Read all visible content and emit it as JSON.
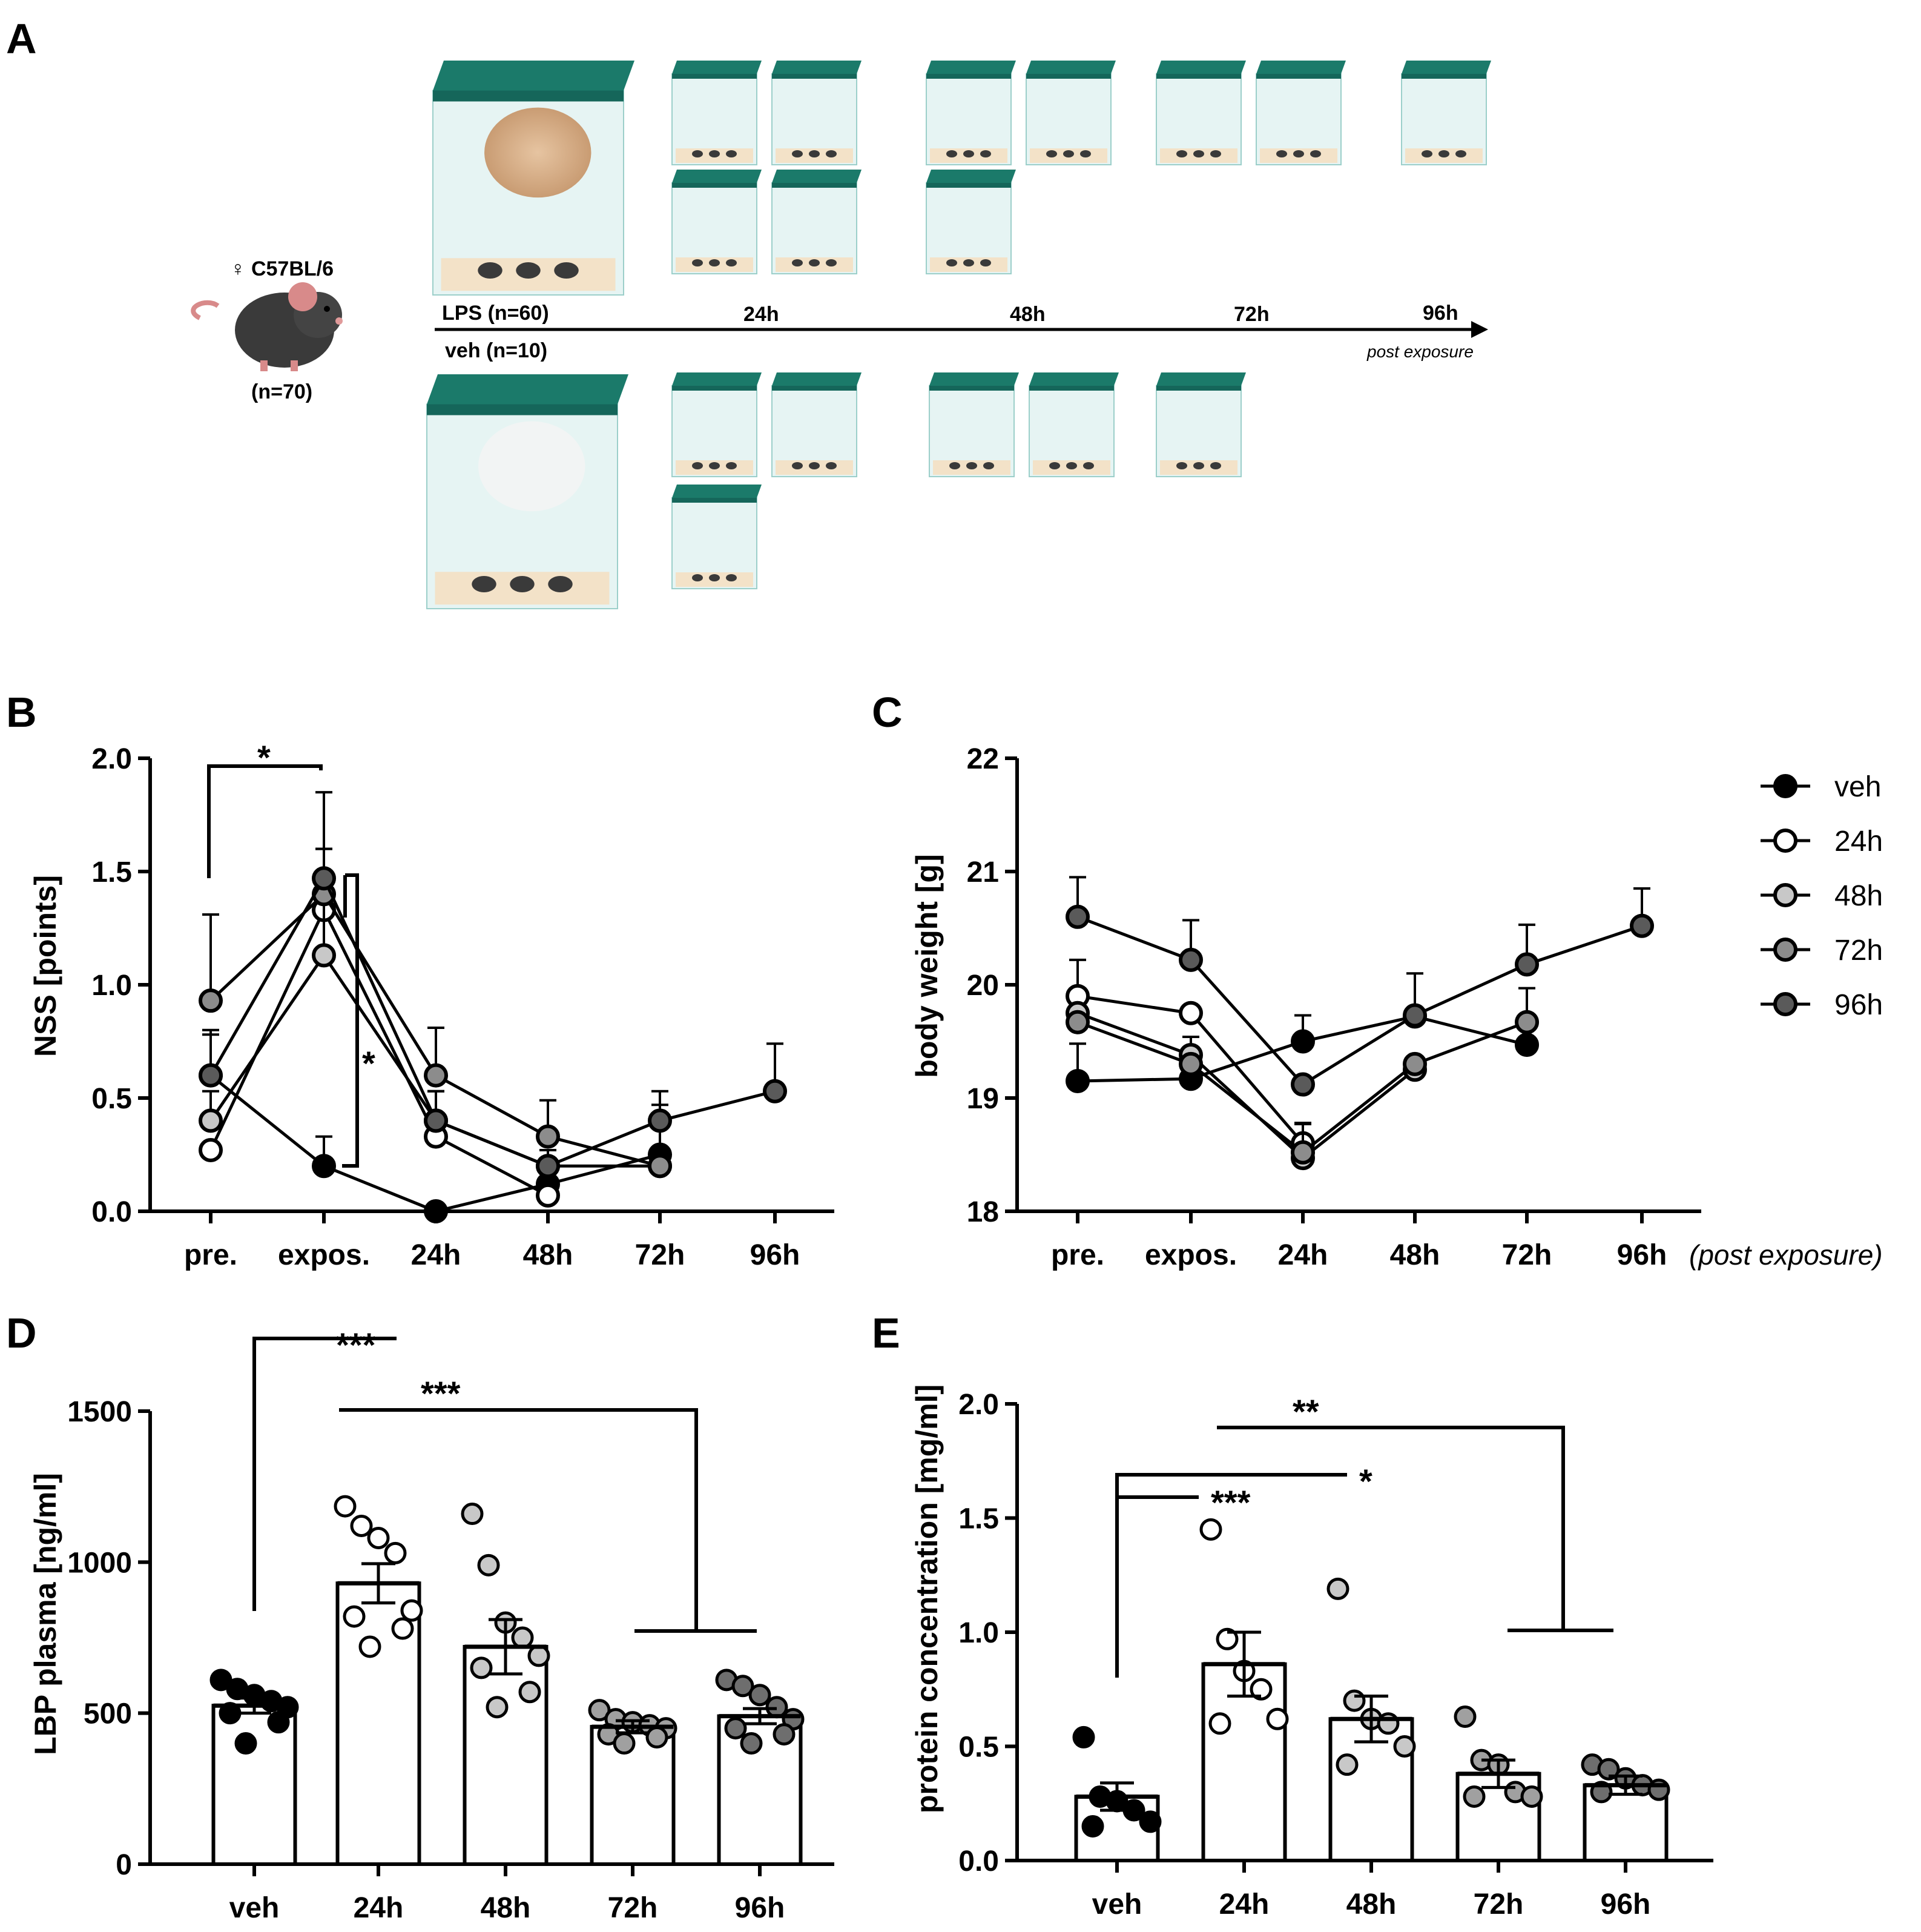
{
  "panels": {
    "A": "A",
    "B": "B",
    "C": "C",
    "D": "D",
    "E": "E"
  },
  "schema": {
    "mouse_label": "♀ C57BL/6",
    "mouse_n": "(n=70)",
    "lps_label": "LPS (n=60)",
    "veh_label": "veh (n=10)",
    "timeline_labels": [
      "24h",
      "48h",
      "72h",
      "96h"
    ],
    "post_exposure": "post exposure",
    "cage_color": "#1b7a6a",
    "lps_cloud_color": "#d8b48f"
  },
  "legend": {
    "items": [
      {
        "label": "veh",
        "fill": "#000000"
      },
      {
        "label": "24h",
        "fill": "#ffffff"
      },
      {
        "label": "48h",
        "fill": "#c8c8c8"
      },
      {
        "label": "72h",
        "fill": "#8c8c8c"
      },
      {
        "label": "96h",
        "fill": "#5a5a5a"
      }
    ]
  },
  "chart_data": [
    {
      "panel": "B",
      "type": "line",
      "ylabel": "NSS [points]",
      "categories": [
        "pre.",
        "expos.",
        "24h",
        "48h",
        "72h",
        "96h"
      ],
      "ylim": [
        0,
        2.0
      ],
      "yticks": [
        "0.0",
        "0.5",
        "1.0",
        "1.5",
        "2.0"
      ],
      "series": [
        {
          "name": "veh",
          "values": [
            0.6,
            0.2,
            0.0,
            0.12,
            0.25,
            null
          ],
          "err": [
            0.18,
            0.13,
            0,
            0,
            0,
            null
          ]
        },
        {
          "name": "24h",
          "values": [
            0.27,
            1.33,
            0.33,
            0.07,
            null,
            null
          ],
          "err": [
            0.0,
            0.27,
            0.0,
            0.0,
            null,
            null
          ]
        },
        {
          "name": "48h",
          "values": [
            0.4,
            1.13,
            0.4,
            0.2,
            0.2,
            null
          ],
          "err": [
            0.13,
            0.27,
            0.13,
            0.0,
            0.27,
            null
          ]
        },
        {
          "name": "72h",
          "values": [
            0.93,
            1.4,
            0.6,
            0.33,
            0.2,
            null
          ],
          "err": [
            0.38,
            0.45,
            0.21,
            0.16,
            0.07,
            null
          ]
        },
        {
          "name": "96h",
          "values": [
            0.6,
            1.47,
            0.4,
            0.2,
            0.4,
            0.53
          ],
          "err": [
            0.2,
            0.13,
            0.13,
            0.07,
            0.13,
            0.21
          ]
        }
      ],
      "annotations": [
        {
          "text": "*",
          "from": "pre.",
          "to": "expos."
        },
        {
          "text": "*",
          "at": "expos."
        }
      ]
    },
    {
      "panel": "C",
      "type": "line",
      "ylabel": "body weight [g]",
      "categories": [
        "pre.",
        "expos.",
        "24h",
        "48h",
        "72h",
        "96h"
      ],
      "xnote": "(post exposure)",
      "ylim": [
        18,
        22
      ],
      "yticks": [
        "18",
        "19",
        "20",
        "21",
        "22"
      ],
      "series": [
        {
          "name": "veh",
          "values": [
            19.15,
            19.17,
            19.5,
            19.72,
            19.47,
            null
          ],
          "err": [
            0.33,
            0.0,
            0.23,
            0.0,
            0.0,
            null
          ]
        },
        {
          "name": "24h",
          "values": [
            19.9,
            19.75,
            18.6,
            null,
            null,
            null
          ],
          "err": [
            0.32,
            0.0,
            0.18,
            null,
            null,
            null
          ]
        },
        {
          "name": "48h",
          "values": [
            19.75,
            19.38,
            18.47,
            19.25,
            null,
            null
          ],
          "err": [
            0.0,
            0.16,
            0.0,
            0.0,
            null,
            null
          ]
        },
        {
          "name": "72h",
          "values": [
            19.67,
            19.3,
            18.52,
            19.3,
            19.67,
            null
          ],
          "err": [
            0.0,
            0.0,
            0.25,
            0.0,
            0.3,
            null
          ]
        },
        {
          "name": "96h",
          "values": [
            20.6,
            20.22,
            19.12,
            19.73,
            20.18,
            20.52
          ],
          "err": [
            0.35,
            0.35,
            0.0,
            0.37,
            0.35,
            0.33
          ]
        }
      ]
    },
    {
      "panel": "D",
      "type": "bar",
      "ylabel": "LBP plasma [ng/ml]",
      "categories": [
        "veh",
        "24h",
        "48h",
        "72h",
        "96h"
      ],
      "ylim": [
        0,
        1500
      ],
      "yticks": [
        "0",
        "500",
        "1000",
        "1500"
      ],
      "values": [
        525,
        930,
        720,
        455,
        490
      ],
      "err": [
        25,
        65,
        90,
        20,
        25
      ],
      "points_fill": [
        "#000000",
        "#ffffff",
        "#c8c8c8",
        "#a0a0a0",
        "#6e6e6e"
      ],
      "points": [
        [
          610,
          580,
          560,
          540,
          520,
          500,
          470,
          400
        ],
        [
          1185,
          1120,
          1080,
          1030,
          840,
          820,
          780,
          720
        ],
        [
          1160,
          990,
          800,
          750,
          690,
          650,
          570,
          520
        ],
        [
          510,
          480,
          470,
          460,
          450,
          430,
          420,
          400
        ],
        [
          610,
          590,
          560,
          520,
          480,
          450,
          430,
          400
        ]
      ],
      "annotations": [
        {
          "text": "***",
          "from": "veh",
          "to": "24h"
        },
        {
          "text": "***",
          "from": "24h",
          "to": [
            "72h",
            "96h"
          ]
        }
      ]
    },
    {
      "panel": "E",
      "type": "bar",
      "ylabel": "protein concentration [mg/ml]",
      "categories": [
        "veh",
        "24h",
        "48h",
        "72h",
        "96h"
      ],
      "ylim": [
        0,
        2.0
      ],
      "yticks": [
        "0.0",
        "0.5",
        "1.0",
        "1.5",
        "2.0"
      ],
      "values": [
        0.28,
        0.86,
        0.62,
        0.38,
        0.33
      ],
      "err": [
        0.06,
        0.14,
        0.1,
        0.06,
        0.04
      ],
      "points_fill": [
        "#000000",
        "#ffffff",
        "#c8c8c8",
        "#a0a0a0",
        "#6e6e6e"
      ],
      "points": [
        [
          0.54,
          0.28,
          0.26,
          0.22,
          0.17,
          0.15
        ],
        [
          1.45,
          0.97,
          0.83,
          0.75,
          0.62,
          0.6
        ],
        [
          1.19,
          0.7,
          0.62,
          0.6,
          0.5,
          0.42
        ],
        [
          0.63,
          0.44,
          0.42,
          0.3,
          0.28,
          0.28
        ],
        [
          0.42,
          0.4,
          0.36,
          0.33,
          0.31,
          0.3
        ]
      ],
      "annotations": [
        {
          "text": "***",
          "from": "veh",
          "to": "24h"
        },
        {
          "text": "*",
          "from": "veh",
          "to": "48h"
        },
        {
          "text": "**",
          "from": "24h",
          "to": [
            "72h",
            "96h"
          ]
        }
      ]
    }
  ]
}
